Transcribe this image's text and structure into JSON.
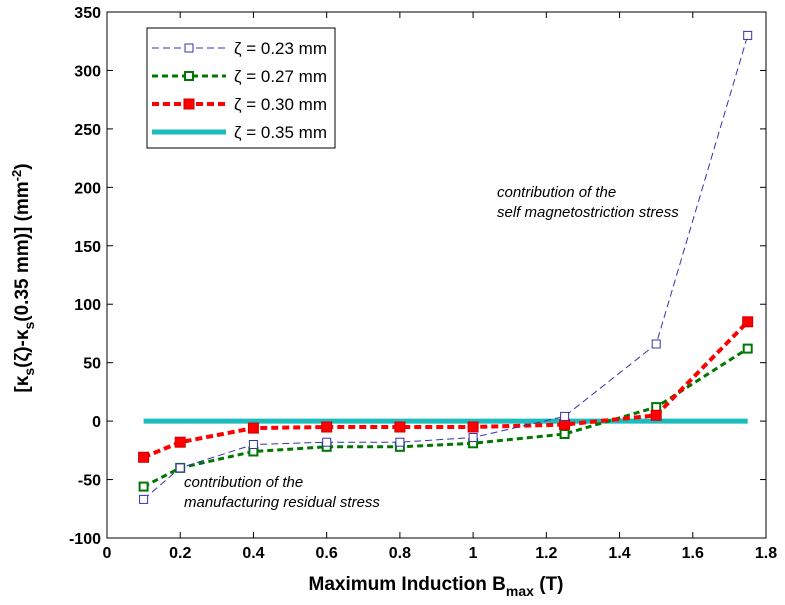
{
  "chart_data": {
    "type": "line",
    "xlabel": {
      "main": "Maximum Induction B",
      "sub": "max",
      "tail": " (T)"
    },
    "ylabel": {
      "p1": "[κ",
      "s1": "s",
      "p2": "(ζ)-κ",
      "s2": "s",
      "p3": "(0.35 mm)] (mm",
      "sup": "-2",
      "p4": ")"
    },
    "xlim": [
      0,
      1.8
    ],
    "ylim": [
      -100,
      350
    ],
    "xticks": [
      0,
      0.2,
      0.4,
      0.6,
      0.8,
      1,
      1.2,
      1.4,
      1.6,
      1.8
    ],
    "yticks": [
      -100,
      -50,
      0,
      50,
      100,
      150,
      200,
      250,
      300,
      350
    ],
    "grid": false,
    "legend_position": "top-left",
    "x": [
      0.1,
      0.2,
      0.4,
      0.6,
      0.8,
      1.0,
      1.25,
      1.5,
      1.75
    ],
    "series": [
      {
        "name": "ζ = 0.23 mm",
        "color": "#3333aa",
        "style": "thin-dashed-open-square",
        "values": [
          -67,
          -40,
          -20,
          -18,
          -18,
          -14,
          4,
          66,
          330
        ]
      },
      {
        "name": "ζ = 0.27 mm",
        "color": "#007700",
        "style": "dashed-open-square",
        "values": [
          -56,
          -40,
          -26,
          -22,
          -22,
          -19,
          -11,
          12,
          62
        ]
      },
      {
        "name": "ζ = 0.30 mm",
        "color": "#ff0000",
        "style": "thick-dashed-filled-square",
        "values": [
          -31,
          -18,
          -6,
          -5,
          -5,
          -5,
          -3,
          5,
          85
        ]
      },
      {
        "name": "ζ = 0.35 mm",
        "color": "#1abcbc",
        "style": "thick-solid",
        "values": [
          0,
          0,
          0,
          0,
          0,
          0,
          0,
          0,
          0
        ]
      }
    ],
    "annotations": [
      {
        "id": "self",
        "lines": [
          "contribution of the",
          "self magnetostriction stress"
        ]
      },
      {
        "id": "manuf",
        "lines": [
          "contribution of the",
          "manufacturing residual stress"
        ]
      }
    ]
  }
}
